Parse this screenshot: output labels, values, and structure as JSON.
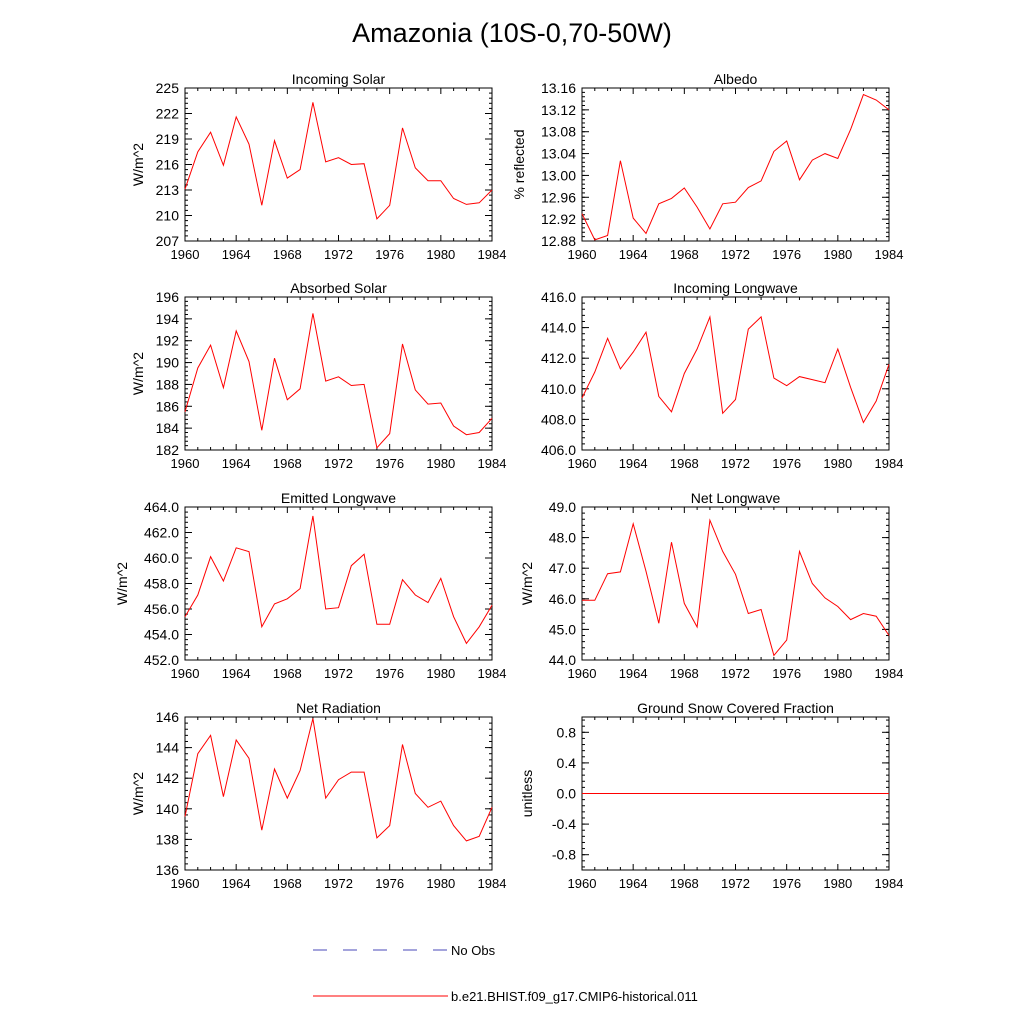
{
  "title": "Amazonia (10S-0,70-50W)",
  "legend": {
    "obs_label": "No Obs",
    "obs_color": "#4a4ab8",
    "model_label": "b.e21.BHIST.f09_g17.CMIP6-historical.011",
    "model_color": "#ff0000"
  },
  "chart_data": [
    {
      "type": "line",
      "title": "Incoming Solar",
      "ylabel": "W/m^2",
      "xlim": [
        1960,
        1984
      ],
      "ylim": [
        207,
        225
      ],
      "xticks": [
        "1960",
        "1964",
        "1968",
        "1972",
        "1976",
        "1980",
        "1984"
      ],
      "yticks": [
        "207",
        "210",
        "213",
        "216",
        "219",
        "222",
        "225"
      ],
      "x": [
        1960,
        1961,
        1962,
        1963,
        1964,
        1965,
        1966,
        1967,
        1968,
        1969,
        1970,
        1971,
        1972,
        1973,
        1974,
        1975,
        1976,
        1977,
        1978,
        1979,
        1980,
        1981,
        1982,
        1983,
        1984
      ],
      "series": [
        {
          "name": "b.e21.BHIST.f09_g17.CMIP6-historical.011",
          "values": [
            213.1,
            217.5,
            219.8,
            215.9,
            221.6,
            218.4,
            211.2,
            218.8,
            214.4,
            215.4,
            223.3,
            216.3,
            216.8,
            216.0,
            216.1,
            209.6,
            211.2,
            220.3,
            215.6,
            214.1,
            214.1,
            212.0,
            211.3,
            211.5,
            213.0
          ]
        }
      ]
    },
    {
      "type": "line",
      "title": "Albedo",
      "ylabel": "% reflected",
      "xlim": [
        1960,
        1984
      ],
      "ylim": [
        12.88,
        13.16
      ],
      "xticks": [
        "1960",
        "1964",
        "1968",
        "1972",
        "1976",
        "1980",
        "1984"
      ],
      "yticks": [
        "12.88",
        "12.92",
        "12.96",
        "13.00",
        "13.04",
        "13.08",
        "13.12",
        "13.16"
      ],
      "x": [
        1960,
        1961,
        1962,
        1963,
        1964,
        1965,
        1966,
        1967,
        1968,
        1969,
        1970,
        1971,
        1972,
        1973,
        1974,
        1975,
        1976,
        1977,
        1978,
        1979,
        1980,
        1981,
        1982,
        1983,
        1984
      ],
      "series": [
        {
          "name": "b.e21.BHIST.f09_g17.CMIP6-historical.011",
          "values": [
            12.93,
            12.882,
            12.89,
            13.027,
            12.922,
            12.894,
            12.948,
            12.958,
            12.977,
            12.942,
            12.902,
            12.948,
            12.951,
            12.978,
            12.99,
            13.044,
            13.063,
            12.992,
            13.028,
            13.04,
            13.031,
            13.084,
            13.148,
            13.138,
            13.12
          ]
        }
      ]
    },
    {
      "type": "line",
      "title": "Absorbed Solar",
      "ylabel": "W/m^2",
      "xlim": [
        1960,
        1984
      ],
      "ylim": [
        182,
        196
      ],
      "xticks": [
        "1960",
        "1964",
        "1968",
        "1972",
        "1976",
        "1980",
        "1984"
      ],
      "yticks": [
        "182",
        "184",
        "186",
        "188",
        "190",
        "192",
        "194",
        "196"
      ],
      "x": [
        1960,
        1961,
        1962,
        1963,
        1964,
        1965,
        1966,
        1967,
        1968,
        1969,
        1970,
        1971,
        1972,
        1973,
        1974,
        1975,
        1976,
        1977,
        1978,
        1979,
        1980,
        1981,
        1982,
        1983,
        1984
      ],
      "series": [
        {
          "name": "b.e21.BHIST.f09_g17.CMIP6-historical.011",
          "values": [
            185.5,
            189.5,
            191.6,
            187.7,
            192.9,
            190.1,
            183.8,
            190.4,
            186.6,
            187.6,
            194.5,
            188.3,
            188.7,
            187.9,
            188.0,
            182.2,
            183.5,
            191.7,
            187.5,
            186.2,
            186.3,
            184.2,
            183.4,
            183.6,
            184.9
          ]
        }
      ]
    },
    {
      "type": "line",
      "title": "Incoming Longwave",
      "ylabel": "",
      "xlim": [
        1960,
        1984
      ],
      "ylim": [
        406,
        416
      ],
      "xticks": [
        "1960",
        "1964",
        "1968",
        "1972",
        "1976",
        "1980",
        "1984"
      ],
      "yticks": [
        "406.0",
        "408.0",
        "410.0",
        "412.0",
        "414.0",
        "416.0"
      ],
      "x": [
        1960,
        1961,
        1962,
        1963,
        1964,
        1965,
        1966,
        1967,
        1968,
        1969,
        1970,
        1971,
        1972,
        1973,
        1974,
        1975,
        1976,
        1977,
        1978,
        1979,
        1980,
        1981,
        1982,
        1983,
        1984
      ],
      "series": [
        {
          "name": "b.e21.BHIST.f09_g17.CMIP6-historical.011",
          "values": [
            409.4,
            411.1,
            413.3,
            411.3,
            412.4,
            413.7,
            409.5,
            408.5,
            411.0,
            412.6,
            414.7,
            408.4,
            409.3,
            413.9,
            414.7,
            410.7,
            410.2,
            410.8,
            410.6,
            410.4,
            412.6,
            410.1,
            407.8,
            409.2,
            411.6
          ]
        }
      ]
    },
    {
      "type": "line",
      "title": "Emitted Longwave",
      "ylabel": "W/m^2",
      "xlim": [
        1960,
        1984
      ],
      "ylim": [
        452,
        464
      ],
      "xticks": [
        "1960",
        "1964",
        "1968",
        "1972",
        "1976",
        "1980",
        "1984"
      ],
      "yticks": [
        "452.0",
        "454.0",
        "456.0",
        "458.0",
        "460.0",
        "462.0",
        "464.0"
      ],
      "x": [
        1960,
        1961,
        1962,
        1963,
        1964,
        1965,
        1966,
        1967,
        1968,
        1969,
        1970,
        1971,
        1972,
        1973,
        1974,
        1975,
        1976,
        1977,
        1978,
        1979,
        1980,
        1981,
        1982,
        1983,
        1984
      ],
      "series": [
        {
          "name": "b.e21.BHIST.f09_g17.CMIP6-historical.011",
          "values": [
            455.4,
            457.1,
            460.1,
            458.2,
            460.8,
            460.5,
            454.6,
            456.4,
            456.8,
            457.6,
            463.3,
            456.0,
            456.1,
            459.4,
            460.3,
            454.8,
            454.8,
            458.3,
            457.1,
            456.5,
            458.4,
            455.4,
            453.3,
            454.6,
            456.3
          ]
        }
      ]
    },
    {
      "type": "line",
      "title": "Net Longwave",
      "ylabel": "W/m^2",
      "xlim": [
        1960,
        1984
      ],
      "ylim": [
        44,
        49
      ],
      "xticks": [
        "1960",
        "1964",
        "1968",
        "1972",
        "1976",
        "1980",
        "1984"
      ],
      "yticks": [
        "44.0",
        "45.0",
        "46.0",
        "47.0",
        "48.0",
        "49.0"
      ],
      "x": [
        1960,
        1961,
        1962,
        1963,
        1964,
        1965,
        1966,
        1967,
        1968,
        1969,
        1970,
        1971,
        1972,
        1973,
        1974,
        1975,
        1976,
        1977,
        1978,
        1979,
        1980,
        1981,
        1982,
        1983,
        1984
      ],
      "series": [
        {
          "name": "b.e21.BHIST.f09_g17.CMIP6-historical.011",
          "values": [
            45.95,
            45.95,
            46.82,
            46.88,
            48.45,
            46.9,
            45.2,
            47.85,
            45.85,
            45.08,
            48.57,
            47.55,
            46.8,
            45.52,
            45.65,
            44.15,
            44.65,
            47.55,
            46.5,
            46.03,
            45.75,
            45.32,
            45.52,
            45.43,
            44.8
          ]
        }
      ]
    },
    {
      "type": "line",
      "title": "Net Radiation",
      "ylabel": "W/m^2",
      "xlim": [
        1960,
        1984
      ],
      "ylim": [
        136,
        146
      ],
      "xticks": [
        "1960",
        "1964",
        "1968",
        "1972",
        "1976",
        "1980",
        "1984"
      ],
      "yticks": [
        "136",
        "138",
        "140",
        "142",
        "144",
        "146"
      ],
      "x": [
        1960,
        1961,
        1962,
        1963,
        1964,
        1965,
        1966,
        1967,
        1968,
        1969,
        1970,
        1971,
        1972,
        1973,
        1974,
        1975,
        1976,
        1977,
        1978,
        1979,
        1980,
        1981,
        1982,
        1983,
        1984
      ],
      "series": [
        {
          "name": "b.e21.BHIST.f09_g17.CMIP6-historical.011",
          "values": [
            139.5,
            143.6,
            144.8,
            140.8,
            144.5,
            143.3,
            138.6,
            142.6,
            140.7,
            142.5,
            145.9,
            140.7,
            141.9,
            142.4,
            142.4,
            138.1,
            138.9,
            144.2,
            141.0,
            140.1,
            140.5,
            138.9,
            137.9,
            138.2,
            140.1
          ]
        }
      ]
    },
    {
      "type": "line",
      "title": "Ground Snow Covered Fraction",
      "ylabel": "unitless",
      "xlim": [
        1960,
        1984
      ],
      "ylim": [
        -1.0,
        1.0
      ],
      "xticks": [
        "1960",
        "1964",
        "1968",
        "1972",
        "1976",
        "1980",
        "1984"
      ],
      "yticks": [
        "-0.8",
        "-0.4",
        "0.0",
        "0.4",
        "0.8"
      ],
      "x": [
        1960,
        1961,
        1962,
        1963,
        1964,
        1965,
        1966,
        1967,
        1968,
        1969,
        1970,
        1971,
        1972,
        1973,
        1974,
        1975,
        1976,
        1977,
        1978,
        1979,
        1980,
        1981,
        1982,
        1983,
        1984
      ],
      "series": [
        {
          "name": "b.e21.BHIST.f09_g17.CMIP6-historical.011",
          "values": [
            0,
            0,
            0,
            0,
            0,
            0,
            0,
            0,
            0,
            0,
            0,
            0,
            0,
            0,
            0,
            0,
            0,
            0,
            0,
            0,
            0,
            0,
            0,
            0,
            0
          ]
        }
      ]
    }
  ]
}
